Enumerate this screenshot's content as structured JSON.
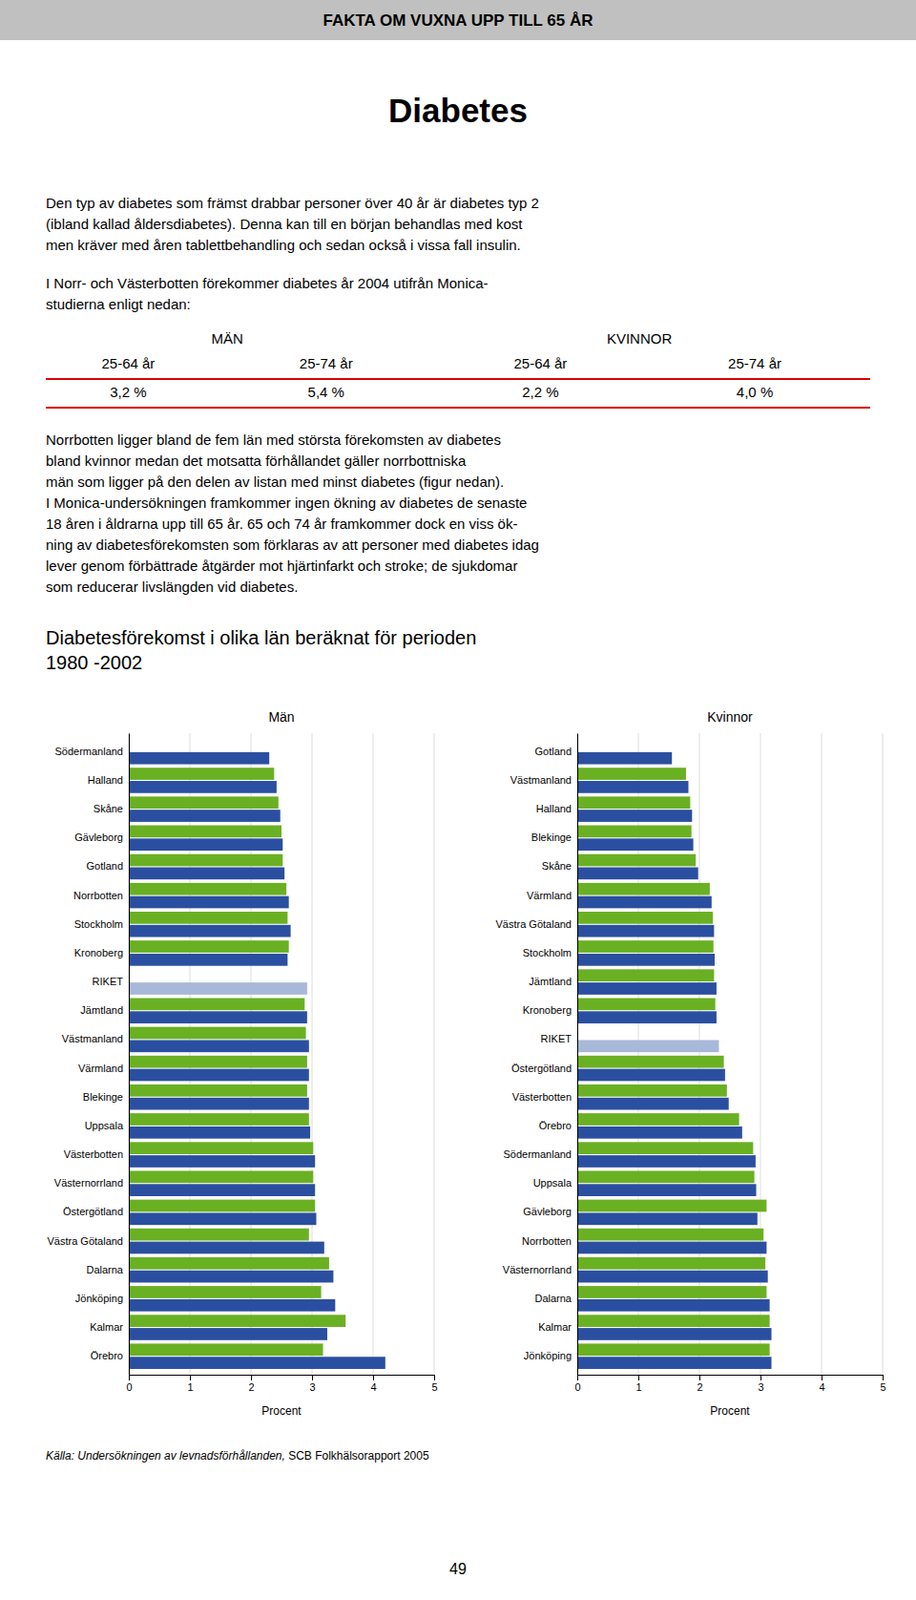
{
  "header": {
    "text": "FAKTA OM VUXNA UPP TILL 65 ÅR",
    "color": "#c0c0c0"
  },
  "title": "Diabetes",
  "paragraphs": [
    [
      "Den typ av diabetes som främst drabbar personer över 40 år är diabetes typ 2",
      "(ibland kallad åldersdiabetes). Denna kan till en början behandlas med kost",
      "men kräver med åren tablettbehandling och sedan också i vissa fall insulin."
    ],
    [
      "I Norr- och Västerbotten förekommer diabetes år 2004 utifrån Monica-",
      "studierna enligt nedan:"
    ],
    [
      "Norrbotten ligger bland de fem län med största förekomsten av diabetes",
      "bland kvinnor medan det motsatta förhållandet gäller norrbottniska",
      "män som ligger på den delen av listan med minst diabetes (figur nedan).",
      "I Monica-undersökningen framkommer ingen ökning av diabetes de senaste",
      "18 åren i åldrarna upp till 65 år. 65 och 74 år framkommer dock en viss ök-",
      "ning av diabetesförekomsten som förklaras av att personer med diabetes idag",
      "lever genom förbättrade åtgärder mot hjärtinfarkt och stroke; de sjukdomar",
      "som reducerar livslängden vid diabetes."
    ]
  ],
  "table": {
    "groups": [
      "MÄN",
      "KVINNOR"
    ],
    "columns": [
      "25-64 år",
      "25-74 år",
      "25-64 år",
      "25-74 år"
    ],
    "values": [
      "3,2 %",
      "5,4 %",
      "2,2 %",
      "4,0 %"
    ],
    "line_color": "#dd0000"
  },
  "chart_heading": [
    "Diabetesförekomst i olika län beräknat för perioden",
    "1980 -2002"
  ],
  "chart_data": [
    {
      "type": "bar",
      "orientation": "horizontal",
      "title": "Män",
      "xlabel": "Procent",
      "categories": [
        "Södermanland",
        "Halland",
        "Skåne",
        "Gävleborg",
        "Gotland",
        "Norrbotten",
        "Stockholm",
        "Kronoberg",
        "RIKET",
        "Jämtland",
        "Västmanland",
        "Värmland",
        "Blekinge",
        "Uppsala",
        "Västerbotten",
        "Västernorrland",
        "Östergötland",
        "Västra Götaland",
        "Dalarna",
        "Jönköping",
        "Kalmar",
        "Örebro"
      ],
      "series": [
        {
          "colors": [
            "#2b4fa0",
            "#2b4fa0",
            "#2b4fa0",
            "#2b4fa0",
            "#2b4fa0",
            "#2b4fa0",
            "#2b4fa0",
            "#2b4fa0",
            "#a8b8d8",
            "#2b4fa0",
            "#2b4fa0",
            "#2b4fa0",
            "#2b4fa0",
            "#2b4fa0",
            "#2b4fa0",
            "#2b4fa0",
            "#2b4fa0",
            "#2b4fa0",
            "#2b4fa0",
            "#2b4fa0",
            "#2b4fa0",
            "#2b4fa0"
          ],
          "values": [
            2.3,
            2.42,
            2.48,
            2.52,
            2.55,
            2.62,
            2.65,
            2.6,
            2.92,
            2.92,
            2.95,
            2.95,
            2.95,
            2.97,
            3.05,
            3.05,
            3.07,
            3.2,
            3.35,
            3.38,
            3.25,
            4.2
          ]
        },
        {
          "colors": [
            "#6ab023",
            "#6ab023",
            "#6ab023",
            "#6ab023",
            "#6ab023",
            "#6ab023",
            "#6ab023",
            "#6ab023",
            "#a8b8d8",
            "#6ab023",
            "#6ab023",
            "#6ab023",
            "#6ab023",
            "#6ab023",
            "#6ab023",
            "#6ab023",
            "#6ab023",
            "#6ab023",
            "#6ab023",
            "#6ab023",
            "#6ab023",
            "#6ab023"
          ],
          "values": [
            0,
            2.38,
            2.45,
            2.5,
            2.52,
            2.58,
            2.6,
            2.62,
            0,
            2.88,
            2.9,
            2.92,
            2.92,
            2.95,
            3.02,
            3.02,
            3.05,
            2.95,
            3.28,
            3.15,
            3.55,
            3.18
          ]
        }
      ],
      "xlim": [
        0,
        5
      ],
      "xticks": [
        0,
        1,
        2,
        3,
        4,
        5
      ],
      "grid": true
    },
    {
      "type": "bar",
      "orientation": "horizontal",
      "title": "Kvinnor",
      "xlabel": "Procent",
      "categories": [
        "Gotland",
        "Västmanland",
        "Halland",
        "Blekinge",
        "Skåne",
        "Värmland",
        "Västra Götaland",
        "Stockholm",
        "Jämtland",
        "Kronoberg",
        "RIKET",
        "Östergötland",
        "Västerbotten",
        "Örebro",
        "Södermanland",
        "Uppsala",
        "Gävleborg",
        "Norrbotten",
        "Västernorrland",
        "Dalarna",
        "Kalmar",
        "Jönköping"
      ],
      "series": [
        {
          "colors": [
            "#2b4fa0",
            "#2b4fa0",
            "#2b4fa0",
            "#2b4fa0",
            "#2b4fa0",
            "#2b4fa0",
            "#2b4fa0",
            "#2b4fa0",
            "#2b4fa0",
            "#2b4fa0",
            "#a8b8d8",
            "#2b4fa0",
            "#2b4fa0",
            "#2b4fa0",
            "#2b4fa0",
            "#2b4fa0",
            "#2b4fa0",
            "#2b4fa0",
            "#2b4fa0",
            "#2b4fa0",
            "#2b4fa0",
            "#2b4fa0"
          ],
          "values": [
            1.55,
            1.82,
            1.88,
            1.9,
            1.98,
            2.2,
            2.24,
            2.25,
            2.28,
            2.28,
            2.32,
            2.42,
            2.48,
            2.7,
            2.92,
            2.93,
            2.95,
            3.1,
            3.12,
            3.15,
            3.18,
            3.18
          ]
        },
        {
          "colors": [
            "#6ab023",
            "#6ab023",
            "#6ab023",
            "#6ab023",
            "#6ab023",
            "#6ab023",
            "#6ab023",
            "#6ab023",
            "#6ab023",
            "#6ab023",
            "#a8b8d8",
            "#6ab023",
            "#6ab023",
            "#6ab023",
            "#6ab023",
            "#6ab023",
            "#6ab023",
            "#6ab023",
            "#6ab023",
            "#6ab023",
            "#6ab023",
            "#6ab023"
          ],
          "values": [
            0,
            1.78,
            1.85,
            1.87,
            1.94,
            2.17,
            2.22,
            2.23,
            2.24,
            2.26,
            0,
            2.4,
            2.45,
            2.65,
            2.88,
            2.9,
            3.1,
            3.05,
            3.08,
            3.1,
            3.15,
            3.15
          ]
        }
      ],
      "xlim": [
        0,
        5
      ],
      "xticks": [
        0,
        1,
        2,
        3,
        4,
        5
      ],
      "grid": true
    }
  ],
  "footer": {
    "source": "Källa: Undersökningen av levnadsförhållanden,",
    "text": " SCB Folkhälsorapport 2005"
  },
  "page_number": "49"
}
